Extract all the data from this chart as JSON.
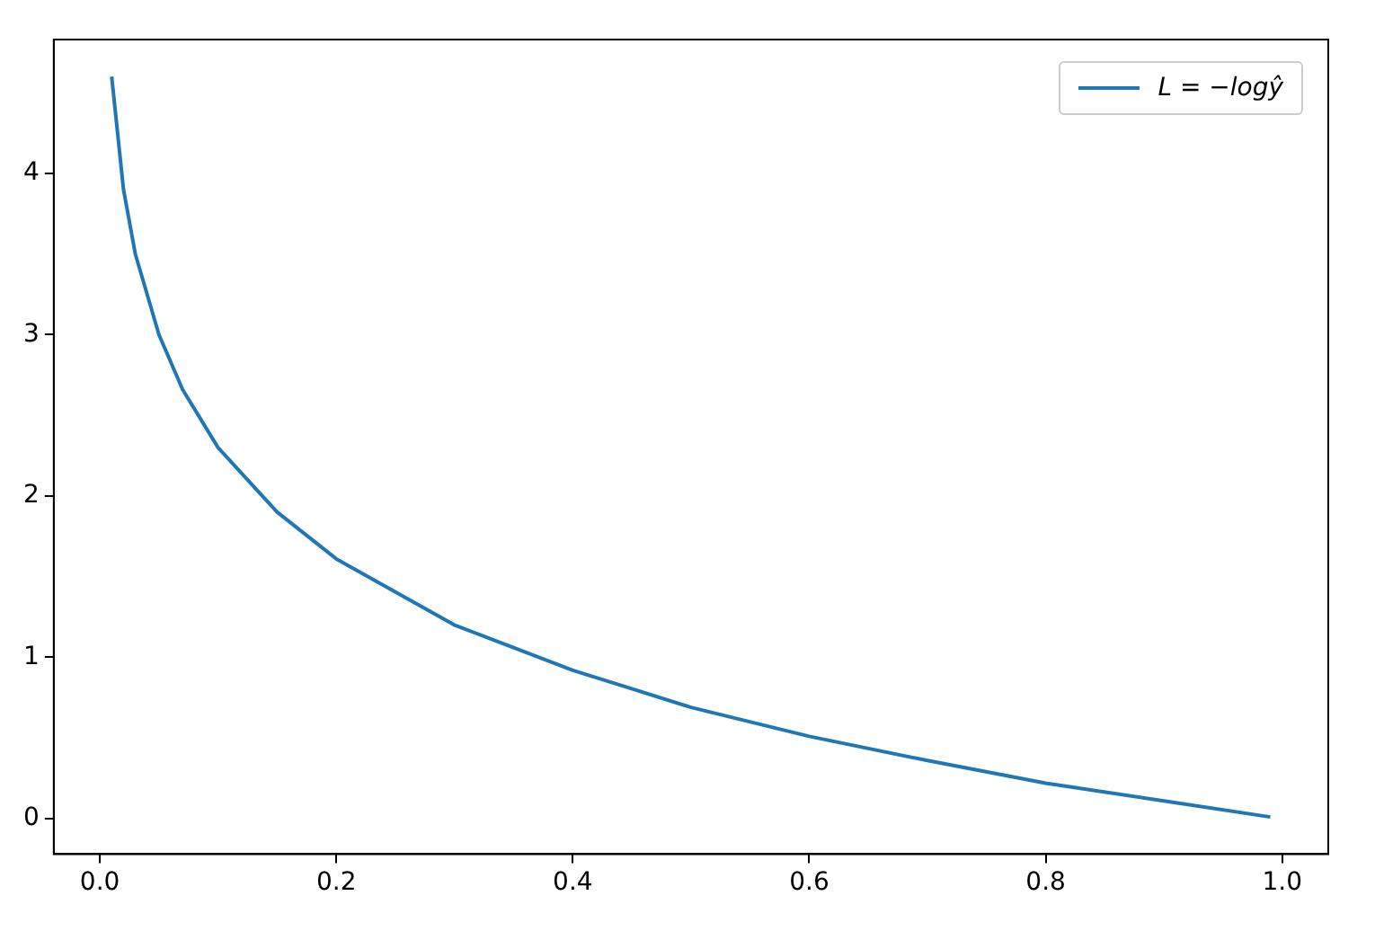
{
  "chart_data": {
    "type": "line",
    "x": [
      0.01,
      0.02,
      0.03,
      0.05,
      0.07,
      0.1,
      0.15,
      0.2,
      0.3,
      0.4,
      0.5,
      0.6,
      0.7,
      0.8,
      0.9,
      0.99
    ],
    "series": [
      {
        "name": "L = −logŷ",
        "color": "#1f77b4",
        "values": [
          4.6,
          3.9,
          3.5,
          3.0,
          2.66,
          2.3,
          1.9,
          1.61,
          1.2,
          0.92,
          0.69,
          0.51,
          0.36,
          0.22,
          0.11,
          0.01
        ]
      }
    ],
    "xlim": [
      -0.039,
      1.039
    ],
    "xticks": [
      {
        "value": 0,
        "label": "0.0"
      },
      0.2,
      0.4,
      0.6,
      0.8,
      {
        "value": 1,
        "label": "1.0"
      }
    ],
    "ylim": [
      -0.22,
      4.83
    ],
    "yticks": [
      0,
      1,
      2,
      3,
      4
    ],
    "grid": false,
    "legend": "top right"
  }
}
